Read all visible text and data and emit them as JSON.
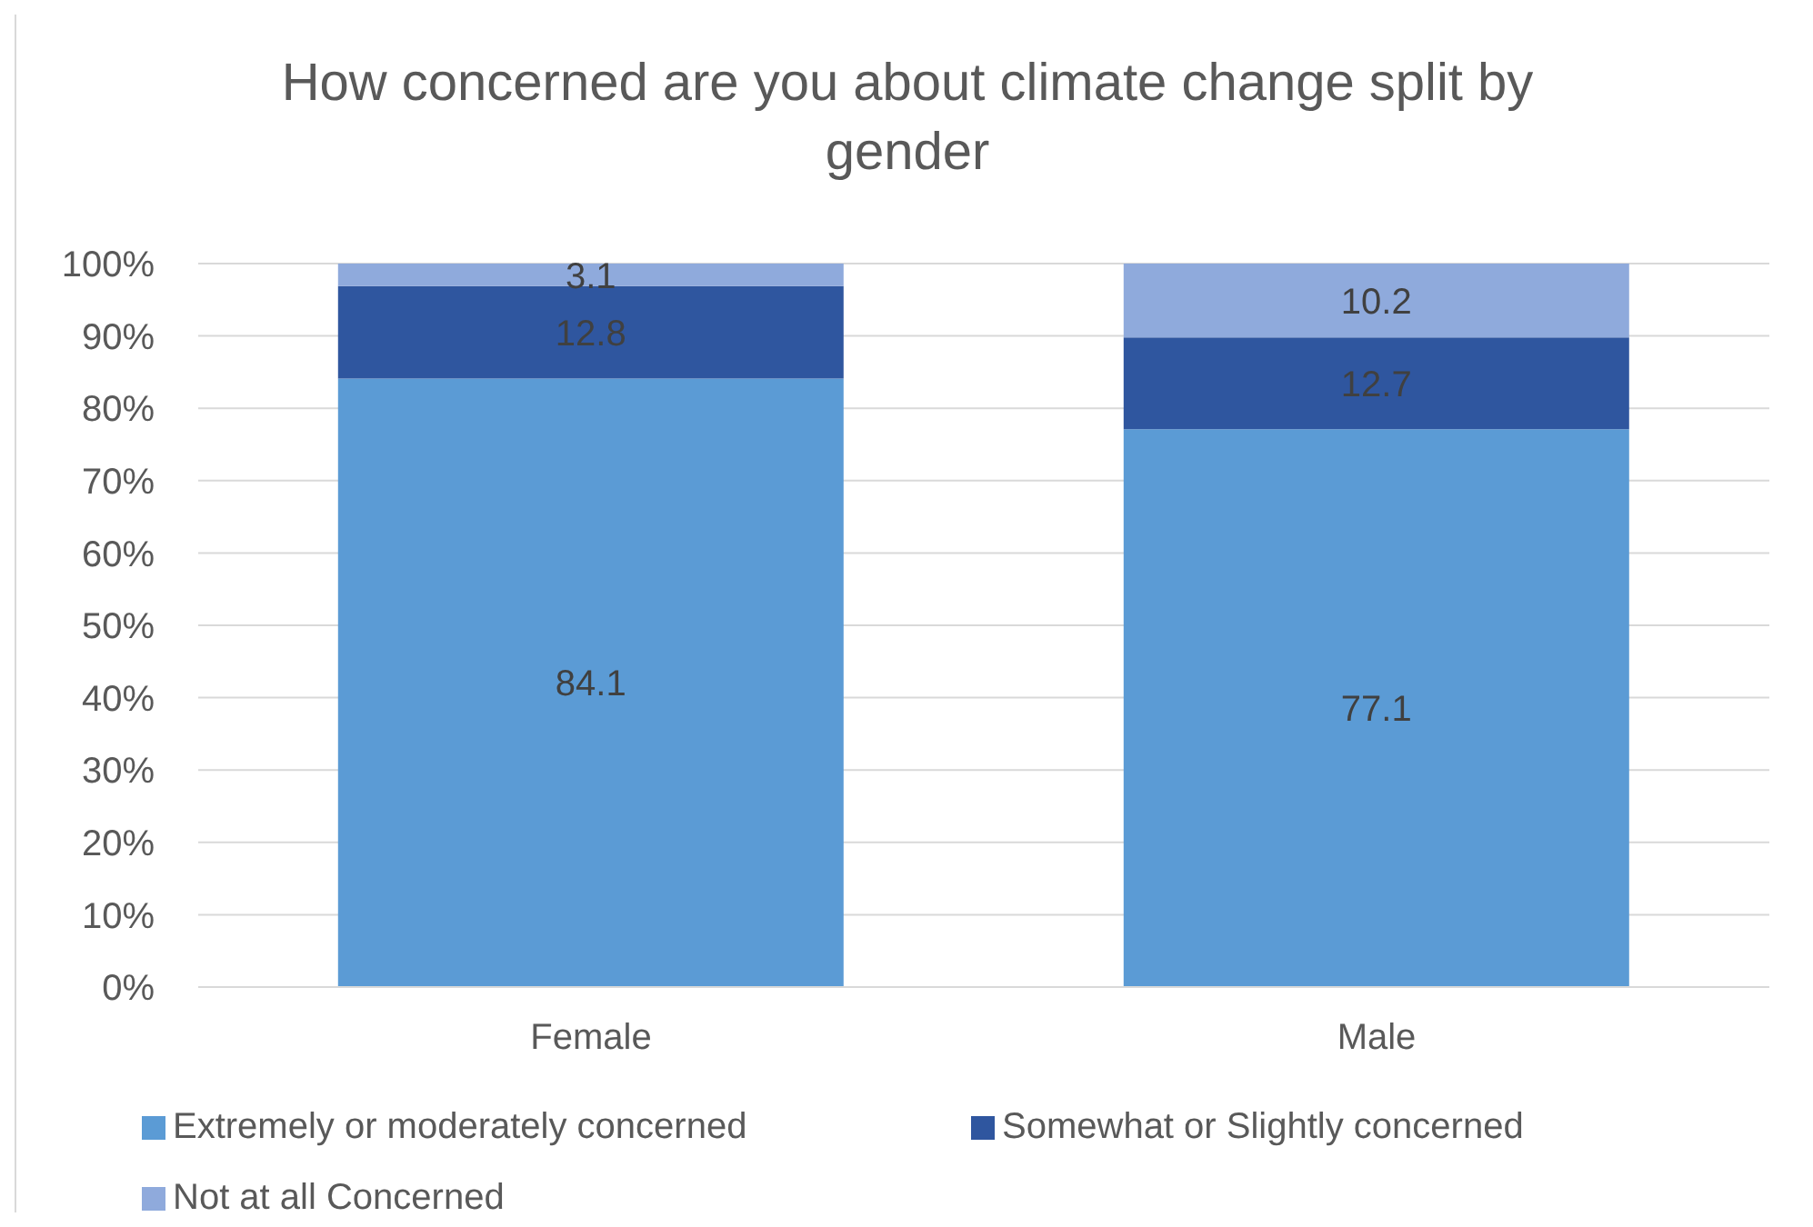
{
  "chart_data": {
    "type": "bar",
    "title": "How concerned are you about climate change split by gender",
    "categories": [
      "Female",
      "Male"
    ],
    "series": [
      {
        "name": "Extremely or moderately concerned",
        "color": "#5b9bd5",
        "values": [
          84.1,
          77.1
        ]
      },
      {
        "name": "Somewhat or Slightly concerned",
        "color": "#2f569f",
        "values": [
          12.8,
          12.7
        ]
      },
      {
        "name": "Not at all Concerned",
        "color": "#8faadc",
        "values": [
          3.1,
          10.2
        ]
      }
    ],
    "stacked": true,
    "ylim": [
      0,
      100
    ],
    "yticks": [
      {
        "value": 0,
        "label": "0%"
      },
      {
        "value": 10,
        "label": "10%"
      },
      {
        "value": 20,
        "label": "20%"
      },
      {
        "value": 30,
        "label": "30%"
      },
      {
        "value": 40,
        "label": "40%"
      },
      {
        "value": 50,
        "label": "50%"
      },
      {
        "value": 60,
        "label": "60%"
      },
      {
        "value": 70,
        "label": "70%"
      },
      {
        "value": 80,
        "label": "80%"
      },
      {
        "value": 90,
        "label": "90%"
      },
      {
        "value": 100,
        "label": "100%"
      }
    ],
    "grid": "y",
    "legend": "bottom",
    "data_labels": true
  }
}
